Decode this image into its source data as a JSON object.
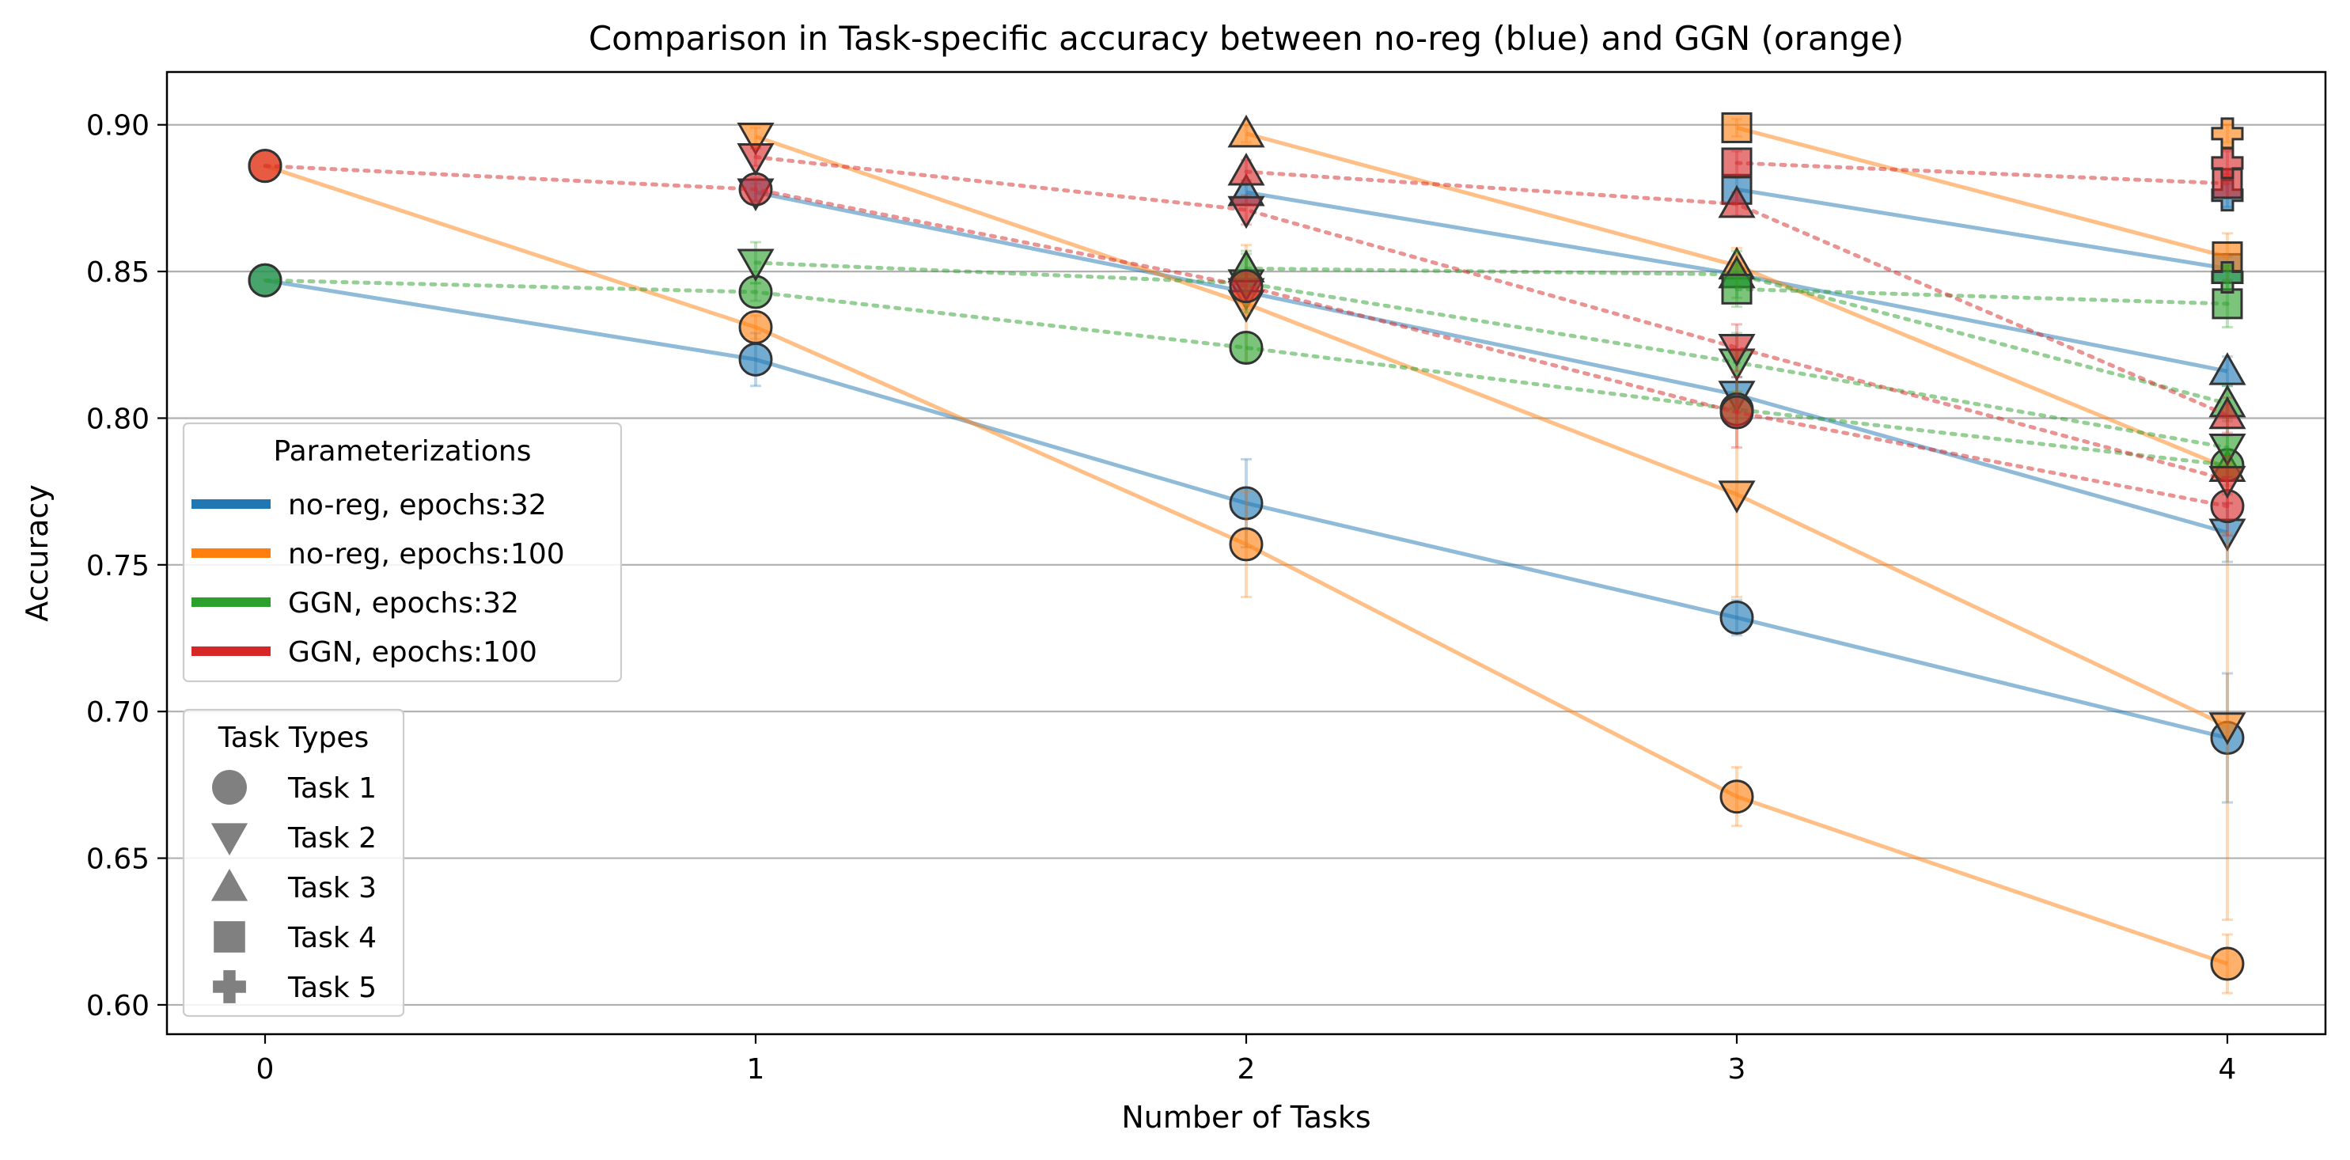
{
  "chart_data": {
    "type": "line",
    "title": "Comparison in Task-specific accuracy between no-reg (blue) and GGN (orange)",
    "xlabel": "Number of Tasks",
    "ylabel": "Accuracy",
    "xlim": [
      -0.2,
      4.2
    ],
    "ylim": [
      0.59,
      0.918
    ],
    "x_ticks": [
      0,
      1,
      2,
      3,
      4
    ],
    "x_tick_labels": [
      "0",
      "1",
      "2",
      "3",
      "4"
    ],
    "y_ticks": [
      0.6,
      0.65,
      0.7,
      0.75,
      0.8,
      0.85,
      0.9
    ],
    "y_tick_labels": [
      "0.60",
      "0.65",
      "0.70",
      "0.75",
      "0.80",
      "0.85",
      "0.90"
    ],
    "grid": "horizontal",
    "colors": {
      "blue": "#1f77b4",
      "orange": "#ff7f0e",
      "green": "#2ca02c",
      "red": "#d62728"
    },
    "legend_parameterizations": {
      "title": "Parameterizations",
      "placement": "center-left",
      "entries": [
        {
          "label": "no-reg, epochs:32",
          "color": "#1f77b4"
        },
        {
          "label": "no-reg, epochs:100",
          "color": "#ff7f0e"
        },
        {
          "label": "GGN, epochs:32",
          "color": "#2ca02c"
        },
        {
          "label": "GGN, epochs:100",
          "color": "#d62728"
        }
      ]
    },
    "legend_tasks": {
      "title": "Task Types",
      "placement": "lower-left",
      "entries": [
        {
          "label": "Task 1",
          "marker": "circle"
        },
        {
          "label": "Task 2",
          "marker": "triangle-down"
        },
        {
          "label": "Task 3",
          "marker": "triangle-up"
        },
        {
          "label": "Task 4",
          "marker": "square"
        },
        {
          "label": "Task 5",
          "marker": "plus"
        }
      ]
    },
    "series": [
      {
        "param": "no-reg, epochs:32",
        "task": "Task 1",
        "color": "#1f77b4",
        "style": "solid",
        "marker": "circle",
        "x": [
          0,
          1,
          2,
          3,
          4
        ],
        "y": [
          0.847,
          0.82,
          0.771,
          0.732,
          0.691
        ],
        "err": [
          0,
          0.009,
          0.015,
          0.006,
          0.022
        ]
      },
      {
        "param": "no-reg, epochs:32",
        "task": "Task 2",
        "color": "#1f77b4",
        "style": "solid",
        "marker": "triangle-down",
        "x": [
          1,
          2,
          3,
          4
        ],
        "y": [
          0.877,
          0.843,
          0.808,
          0.761
        ],
        "err": [
          0.003,
          0.006,
          0.006,
          0.01
        ]
      },
      {
        "param": "no-reg, epochs:32",
        "task": "Task 3",
        "color": "#1f77b4",
        "style": "solid",
        "marker": "triangle-up",
        "x": [
          2,
          3,
          4
        ],
        "y": [
          0.877,
          0.849,
          0.816
        ],
        "err": [
          0.004,
          0.004,
          0.005
        ]
      },
      {
        "param": "no-reg, epochs:32",
        "task": "Task 4",
        "color": "#1f77b4",
        "style": "solid",
        "marker": "square",
        "x": [
          3,
          4
        ],
        "y": [
          0.878,
          0.851
        ],
        "err": [
          0.004,
          0.004
        ]
      },
      {
        "param": "no-reg, epochs:32",
        "task": "Task 5",
        "color": "#1f77b4",
        "style": "solid",
        "marker": "plus",
        "x": [
          4
        ],
        "y": [
          0.876
        ],
        "err": [
          0.004
        ]
      },
      {
        "param": "no-reg, epochs:100",
        "task": "Task 1",
        "color": "#ff7f0e",
        "style": "solid",
        "marker": "circle",
        "x": [
          0,
          1,
          2,
          3,
          4
        ],
        "y": [
          0.886,
          0.831,
          0.757,
          0.671,
          0.614
        ],
        "err": [
          0,
          0.004,
          0.018,
          0.01,
          0.01
        ]
      },
      {
        "param": "no-reg, epochs:100",
        "task": "Task 2",
        "color": "#ff7f0e",
        "style": "solid",
        "marker": "triangle-down",
        "x": [
          1,
          2,
          3,
          4
        ],
        "y": [
          0.896,
          0.839,
          0.774,
          0.695
        ],
        "err": [
          0.003,
          0.02,
          0.035,
          0.066
        ]
      },
      {
        "param": "no-reg, epochs:100",
        "task": "Task 3",
        "color": "#ff7f0e",
        "style": "solid",
        "marker": "triangle-up",
        "x": [
          2,
          3,
          4
        ],
        "y": [
          0.897,
          0.852,
          0.783
        ],
        "err": [
          0.003,
          0.006,
          0.006
        ]
      },
      {
        "param": "no-reg, epochs:100",
        "task": "Task 4",
        "color": "#ff7f0e",
        "style": "solid",
        "marker": "square",
        "x": [
          3,
          4
        ],
        "y": [
          0.899,
          0.855
        ],
        "err": [
          0.003,
          0.008
        ]
      },
      {
        "param": "no-reg, epochs:100",
        "task": "Task 5",
        "color": "#ff7f0e",
        "style": "solid",
        "marker": "plus",
        "x": [
          4
        ],
        "y": [
          0.897
        ],
        "err": [
          0.003
        ]
      },
      {
        "param": "GGN, epochs:32",
        "task": "Task 1",
        "color": "#2ca02c",
        "style": "dotted",
        "marker": "circle",
        "x": [
          0,
          1,
          2,
          3,
          4
        ],
        "y": [
          0.847,
          0.843,
          0.824,
          0.803,
          0.784
        ],
        "err": [
          0,
          0.003,
          0.005,
          0.005,
          0.01
        ]
      },
      {
        "param": "GGN, epochs:32",
        "task": "Task 2",
        "color": "#2ca02c",
        "style": "dotted",
        "marker": "triangle-down",
        "x": [
          1,
          2,
          3,
          4
        ],
        "y": [
          0.853,
          0.846,
          0.819,
          0.79
        ],
        "err": [
          0.007,
          0.01,
          0.01,
          0.01
        ]
      },
      {
        "param": "GGN, epochs:32",
        "task": "Task 3",
        "color": "#2ca02c",
        "style": "dotted",
        "marker": "triangle-up",
        "x": [
          2,
          3,
          4
        ],
        "y": [
          0.851,
          0.849,
          0.805
        ],
        "err": [
          0.006,
          0.008,
          0.006
        ]
      },
      {
        "param": "GGN, epochs:32",
        "task": "Task 4",
        "color": "#2ca02c",
        "style": "dotted",
        "marker": "square",
        "x": [
          3,
          4
        ],
        "y": [
          0.844,
          0.839
        ],
        "err": [
          0.006,
          0.008
        ]
      },
      {
        "param": "GGN, epochs:32",
        "task": "Task 5",
        "color": "#2ca02c",
        "style": "dotted",
        "marker": "plus",
        "x": [
          4
        ],
        "y": [
          0.848
        ],
        "err": [
          0.004
        ]
      },
      {
        "param": "GGN, epochs:100",
        "task": "Task 1",
        "color": "#d62728",
        "style": "dotted",
        "marker": "circle",
        "x": [
          0,
          1,
          2,
          3,
          4
        ],
        "y": [
          0.886,
          0.878,
          0.845,
          0.802,
          0.77
        ],
        "err": [
          0,
          0.004,
          0.005,
          0.012,
          0.01
        ]
      },
      {
        "param": "GGN, epochs:100",
        "task": "Task 2",
        "color": "#d62728",
        "style": "dotted",
        "marker": "triangle-down",
        "x": [
          1,
          2,
          3,
          4
        ],
        "y": [
          0.889,
          0.871,
          0.824,
          0.779
        ],
        "err": [
          0.003,
          0.005,
          0.008,
          0.008
        ]
      },
      {
        "param": "GGN, epochs:100",
        "task": "Task 3",
        "color": "#d62728",
        "style": "dotted",
        "marker": "triangle-up",
        "x": [
          2,
          3,
          4
        ],
        "y": [
          0.884,
          0.873,
          0.801
        ],
        "err": [
          0.004,
          0.004,
          0.006
        ]
      },
      {
        "param": "GGN, epochs:100",
        "task": "Task 4",
        "color": "#d62728",
        "style": "dotted",
        "marker": "square",
        "x": [
          3,
          4
        ],
        "y": [
          0.887,
          0.88
        ],
        "err": [
          0.004,
          0.005
        ]
      },
      {
        "param": "GGN, epochs:100",
        "task": "Task 5",
        "color": "#d62728",
        "style": "dotted",
        "marker": "plus",
        "x": [
          4
        ],
        "y": [
          0.887
        ],
        "err": [
          0.004
        ]
      }
    ]
  }
}
